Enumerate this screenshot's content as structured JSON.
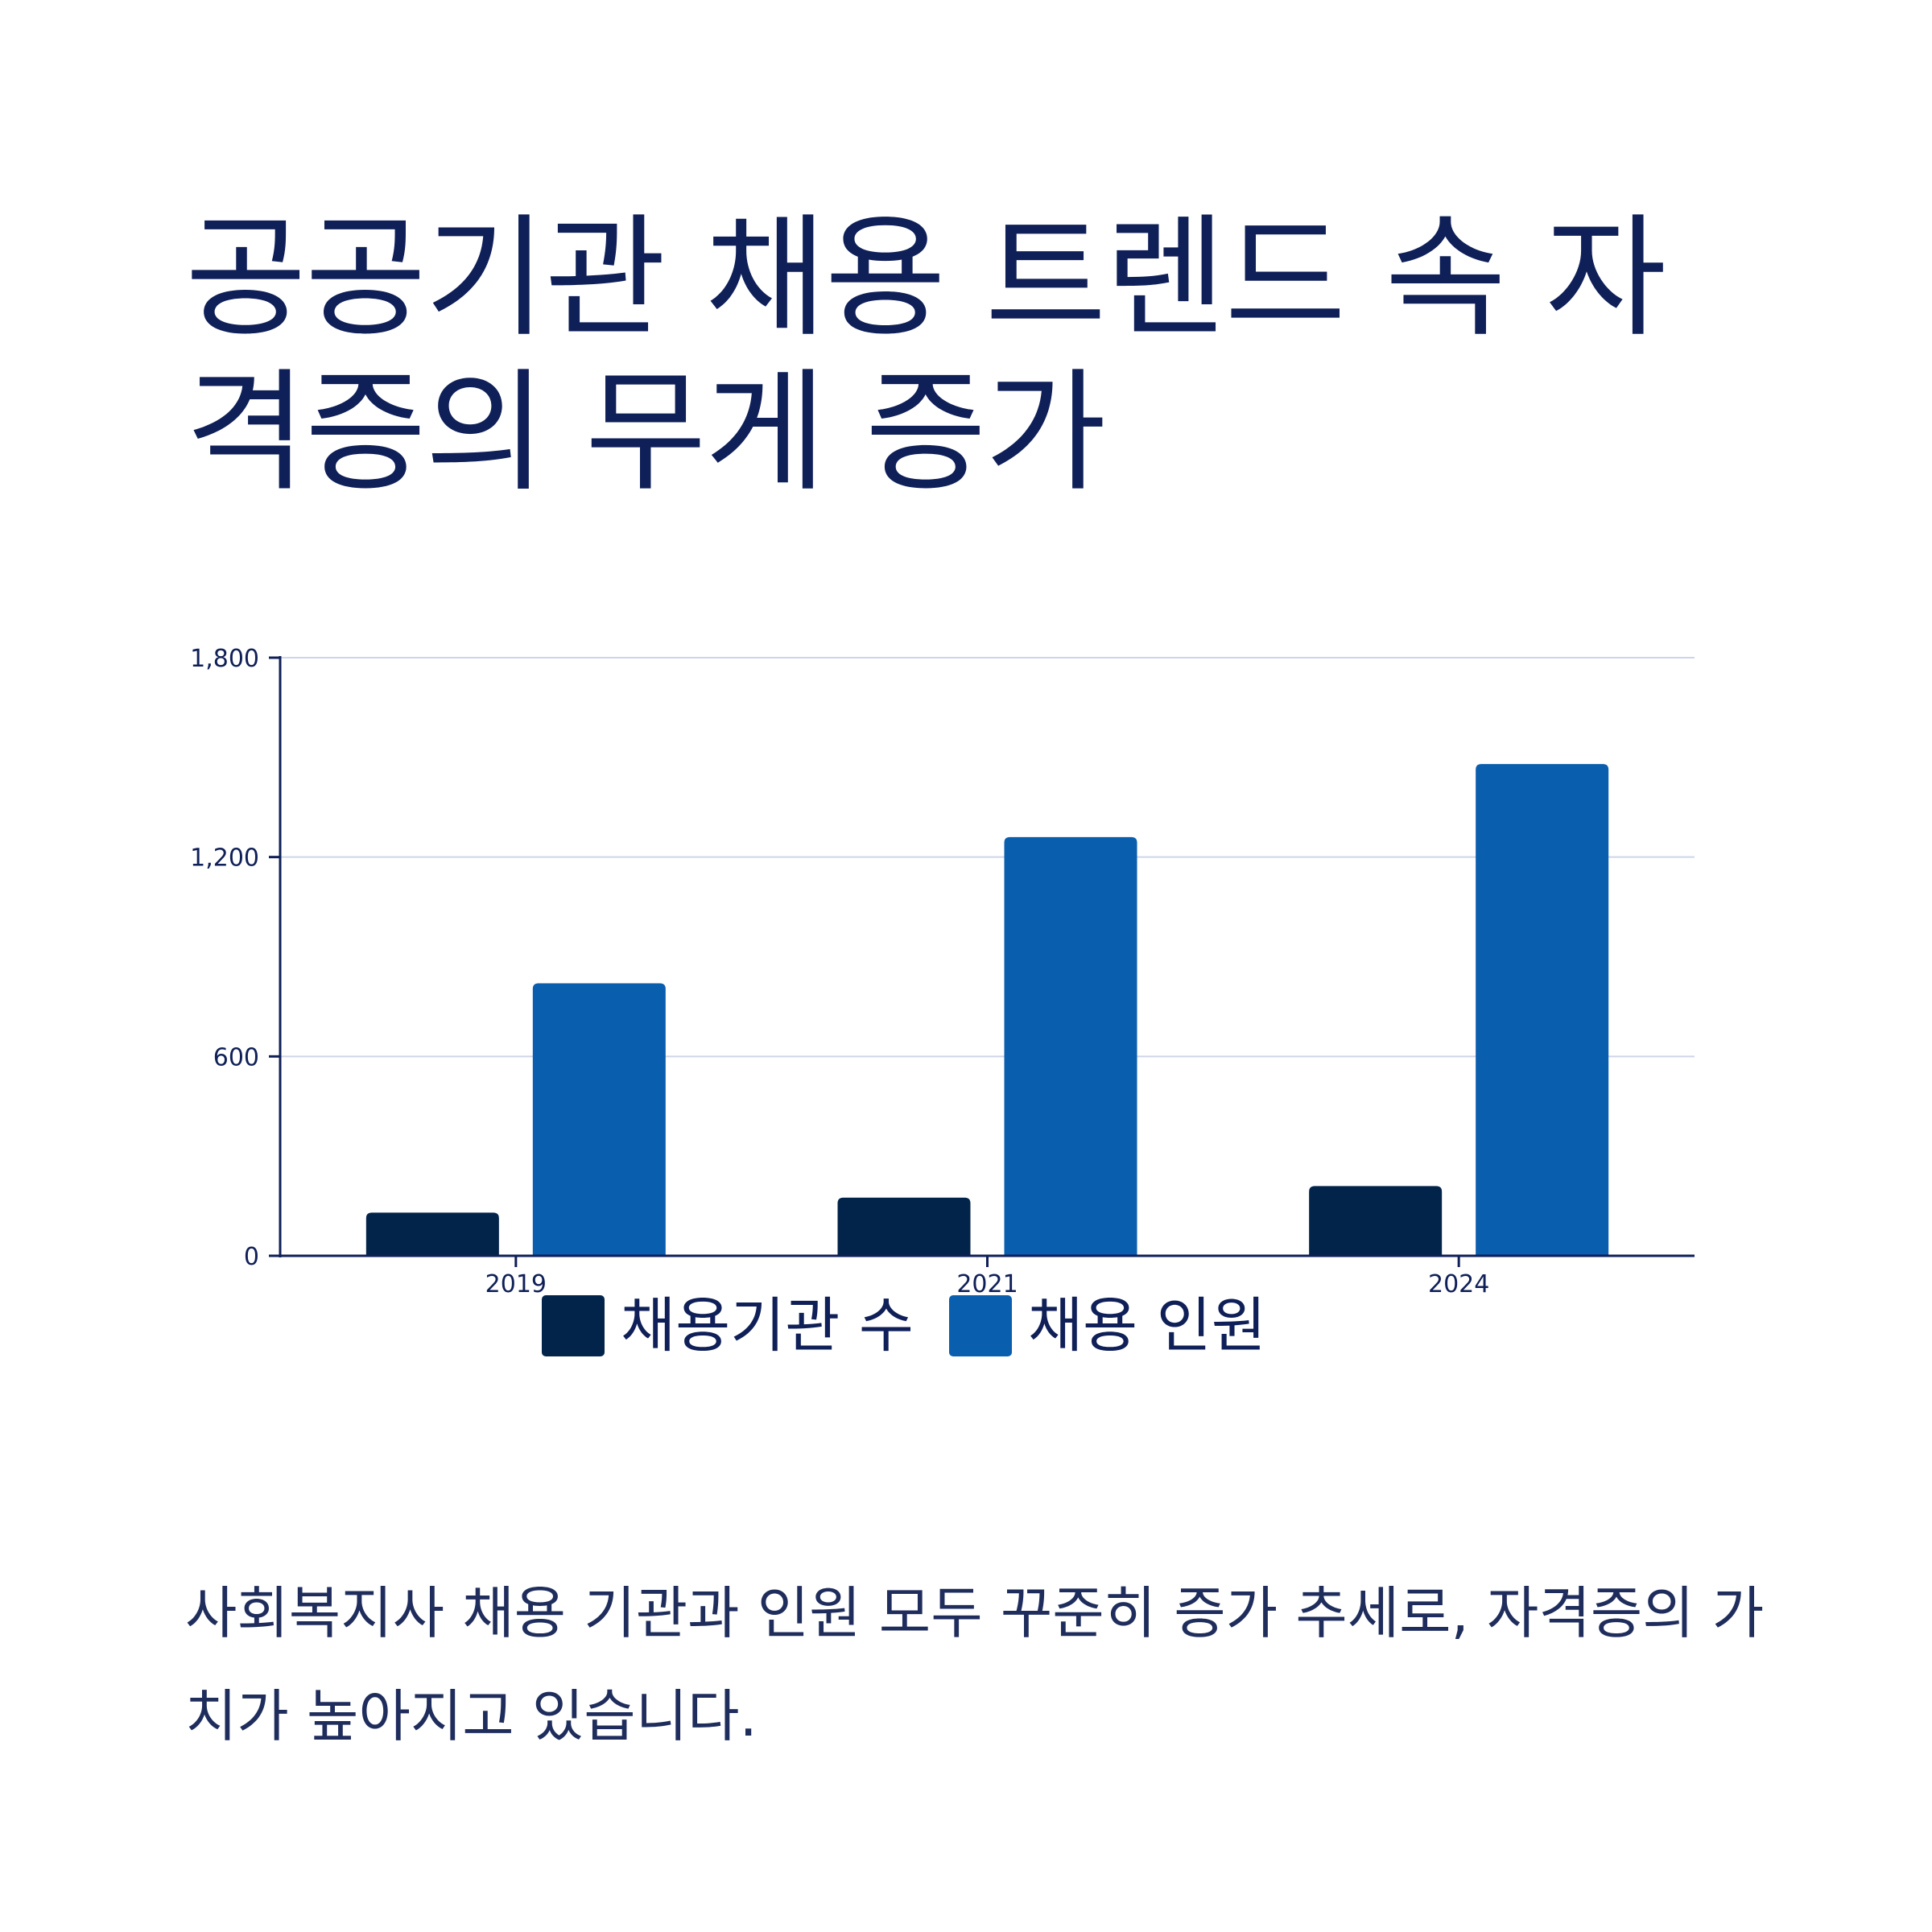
{
  "page": {
    "title": "공공기관 채용 트렌드 속 자격증의 무게 증가",
    "caption": "사회복지사 채용 기관과 인원 모두 꾸준히 증가 추세로, 자격증의 가치가 높아지고 있습니다."
  },
  "colors": {
    "title": "#0f1f57",
    "series_1": "#03244a",
    "series_2": "#0a5eae",
    "grid": "#cfd5e8",
    "axis": "#0f1f57"
  },
  "chart_data": {
    "type": "bar",
    "categories": [
      "2019",
      "2021",
      "2024"
    ],
    "series": [
      {
        "name": "채용기관 수",
        "values": [
          130,
          175,
          210
        ]
      },
      {
        "name": "채용 인원",
        "values": [
          820,
          1260,
          1480
        ]
      }
    ],
    "title": "",
    "xlabel": "",
    "ylabel": "",
    "ylim": [
      0,
      1800
    ],
    "yticks": [
      0,
      600,
      1200,
      1800
    ],
    "ytick_labels": [
      "0",
      "600",
      "1,200",
      "1,800"
    ],
    "grid": true,
    "legend": "bottom-center"
  }
}
